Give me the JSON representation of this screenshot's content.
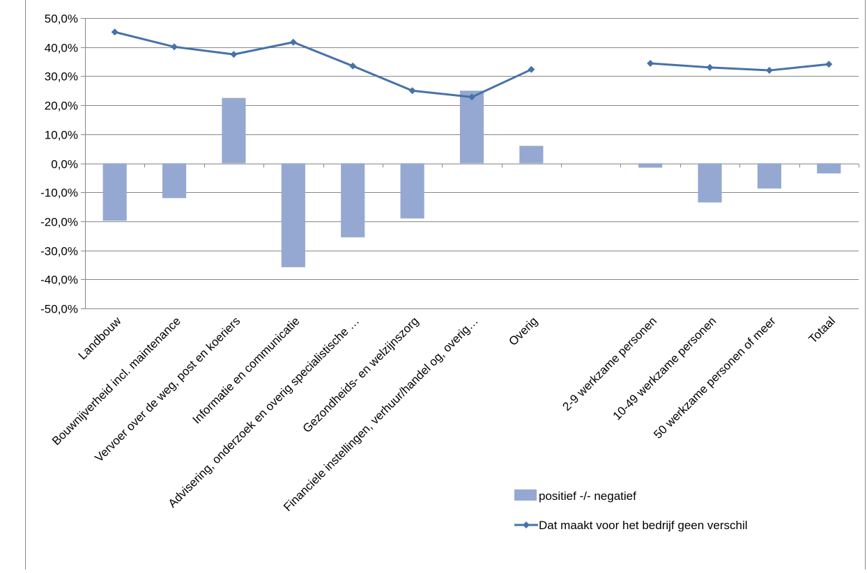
{
  "chart_data": {
    "type": "bar",
    "title": "",
    "xlabel": "",
    "ylabel": "",
    "ylim": [
      -50,
      50
    ],
    "ytick_step": 10,
    "y_tick_labels": [
      "-50,0%",
      "-40,0%",
      "-30,0%",
      "-20,0%",
      "-10,0%",
      "0,0%",
      "10,0%",
      "20,0%",
      "30,0%",
      "40,0%",
      "50,0%"
    ],
    "grid": true,
    "legend_position": "bottom-right",
    "categories": [
      "Landbouw",
      "Bouwnijverheid incl. maintenance",
      "Vervoer over de weg, post en koeriers",
      "Informatie en communicatie",
      "Advisering, onderzoek en overig specialistische …",
      "Gezondheids- en welzijnszorg",
      "Financiele instellingen, verhuur/handel og, overig…",
      "Overig",
      "",
      "2-9 werkzame personen",
      "10-49 werkzame personen",
      "50 werkzame personen of meer",
      "Totaal"
    ],
    "series": [
      {
        "name": "positief -/- negatief",
        "kind": "bar",
        "color": "#95A8D1",
        "values": [
          -19.8,
          -12.0,
          22.5,
          -35.8,
          -25.5,
          -19.0,
          25.0,
          6.0,
          null,
          -1.5,
          -13.5,
          -8.7,
          -3.5
        ]
      },
      {
        "name": "Dat maakt voor het bedrijf geen verschil",
        "kind": "line",
        "color": "#4672A8",
        "values": [
          45.2,
          40.1,
          37.5,
          41.7,
          33.5,
          25.0,
          22.8,
          32.3,
          null,
          34.4,
          33.0,
          32.0,
          34.1
        ]
      }
    ]
  }
}
